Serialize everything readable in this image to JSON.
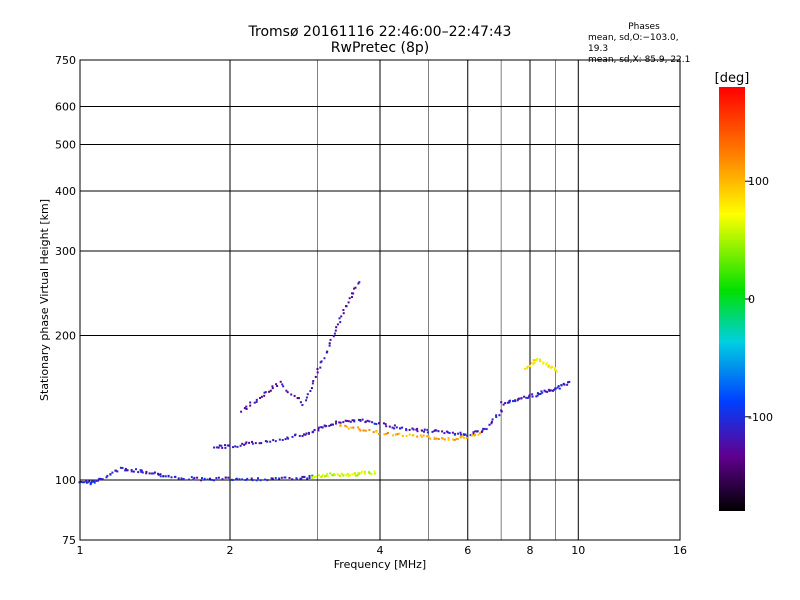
{
  "title_line1": "Tromsø 20161116 22:46:00–22:47:43",
  "title_line2": "RwPretec (8p)",
  "phases": {
    "header": "Phases",
    "line_o": "mean, sd,O:−103.0, 19.3",
    "line_x": "mean, sd,X:  85.9, 22.1"
  },
  "chart_data": {
    "type": "scatter",
    "title": "Tromsø 20161116 22:46:00–22:47:43",
    "xlabel": "Frequency [MHz]",
    "ylabel": "Stationary phase Virtual Height [km]",
    "x_scale": "log",
    "y_scale": "log",
    "xlim": [
      1,
      16
    ],
    "ylim": [
      75,
      750
    ],
    "x_ticks": [
      1,
      2,
      4,
      6,
      8,
      10,
      16
    ],
    "x_tick_labels": [
      "1",
      "2",
      "4",
      "6",
      "8",
      "10",
      "16"
    ],
    "y_ticks": [
      75,
      100,
      200,
      300,
      400,
      500,
      600,
      750
    ],
    "y_tick_labels": [
      "75",
      "100",
      "200",
      "300",
      "400",
      "500",
      "600",
      "750"
    ],
    "grid": true,
    "colorbar": {
      "label": "[deg]",
      "range": [
        -180,
        180
      ],
      "ticks": [
        100,
        0,
        -100
      ],
      "tick_labels": [
        "100",
        "0",
        "-100"
      ]
    },
    "traces": [
      {
        "name": "o_low",
        "x": [
          1.0,
          1.05,
          1.1,
          1.2,
          1.3,
          1.4,
          1.5,
          1.7,
          1.9,
          2.1,
          2.4,
          2.7,
          2.9
        ],
        "y": [
          100,
          99,
          101,
          106,
          105,
          104,
          102,
          101,
          101,
          101,
          101,
          101,
          102
        ],
        "phase": -110
      },
      {
        "name": "o_mid",
        "x": [
          1.85,
          2.0,
          2.2,
          2.5,
          2.8,
          3.0,
          3.2,
          3.5,
          3.8,
          4.2,
          4.6,
          5.0,
          5.5,
          6.0,
          6.5,
          7.0
        ],
        "y": [
          118,
          118,
          120,
          122,
          125,
          128,
          132,
          134,
          133,
          130,
          128,
          127,
          126,
          125,
          128,
          140
        ],
        "phase": -115
      },
      {
        "name": "o_upper",
        "x": [
          7.0,
          7.5,
          8.0,
          8.5,
          9.0,
          9.5
        ],
        "y": [
          145,
          148,
          150,
          153,
          156,
          160
        ],
        "phase": -110
      },
      {
        "name": "o_spread",
        "x": [
          2.1,
          2.3,
          2.5,
          2.8,
          3.0,
          3.2,
          3.4,
          3.6
        ],
        "y": [
          140,
          150,
          160,
          145,
          170,
          200,
          230,
          260
        ],
        "phase": -125
      },
      {
        "name": "x_low",
        "x": [
          2.9,
          3.1,
          3.3,
          3.5,
          3.7,
          3.9
        ],
        "y": [
          102,
          103,
          103,
          103,
          104,
          104
        ],
        "phase": 60
      },
      {
        "name": "x_mid",
        "x": [
          3.3,
          3.7,
          4.2,
          4.8,
          5.3,
          5.8,
          6.3
        ],
        "y": [
          130,
          128,
          125,
          124,
          122,
          123,
          125
        ],
        "phase": 110
      },
      {
        "name": "x_upper",
        "x": [
          7.8,
          8.2,
          8.6,
          9.0
        ],
        "y": [
          170,
          180,
          175,
          170
        ],
        "phase": 75
      }
    ]
  }
}
